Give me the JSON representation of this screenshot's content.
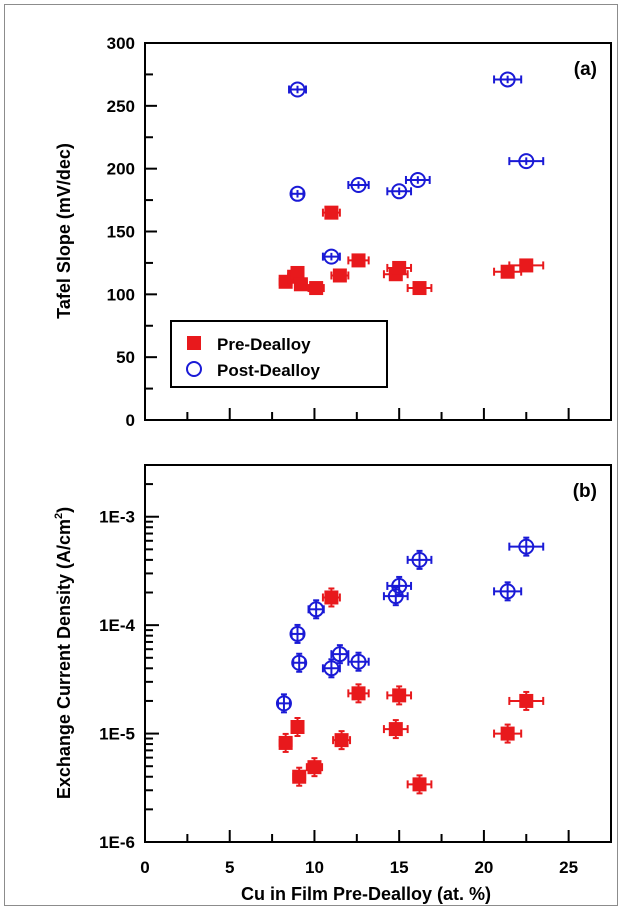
{
  "chart_data": [
    {
      "panel": "(a)",
      "type": "scatter",
      "ylabel": "Tafel Slope (mV/dec)",
      "xlabel": "",
      "xlim": [
        0,
        27.5
      ],
      "ylim": [
        0,
        300
      ],
      "yscale": "linear",
      "yticks": [
        0,
        50,
        100,
        150,
        200,
        250,
        300
      ],
      "xticks_minor": [
        2.5,
        5,
        7.5,
        10,
        12.5,
        15,
        17.5,
        20,
        22.5,
        25
      ],
      "legend": {
        "placement": "bottom-left",
        "entries": [
          "Pre-Dealloy",
          "Post-Dealloy"
        ]
      },
      "series": [
        {
          "name": "Pre-Dealloy",
          "marker": "filled-square",
          "color": "#e8191c",
          "points": [
            {
              "x": 8.3,
              "y": 110,
              "xerr": 0.35,
              "yerr": 3
            },
            {
              "x": 8.8,
              "y": 114,
              "xerr": 0.35,
              "yerr": 3
            },
            {
              "x": 9.0,
              "y": 117,
              "xerr": 0.35,
              "yerr": 3
            },
            {
              "x": 9.2,
              "y": 108,
              "xerr": 0.35,
              "yerr": 3
            },
            {
              "x": 10.1,
              "y": 105,
              "xerr": 0.45,
              "yerr": 3
            },
            {
              "x": 11.0,
              "y": 165,
              "xerr": 0.5,
              "yerr": 3
            },
            {
              "x": 11.5,
              "y": 115,
              "xerr": 0.5,
              "yerr": 3
            },
            {
              "x": 12.6,
              "y": 127,
              "xerr": 0.6,
              "yerr": 3
            },
            {
              "x": 14.8,
              "y": 116,
              "xerr": 0.7,
              "yerr": 4
            },
            {
              "x": 15.0,
              "y": 121,
              "xerr": 0.7,
              "yerr": 4
            },
            {
              "x": 16.2,
              "y": 105,
              "xerr": 0.7,
              "yerr": 3
            },
            {
              "x": 21.4,
              "y": 118,
              "xerr": 0.8,
              "yerr": 3
            },
            {
              "x": 22.5,
              "y": 123,
              "xerr": 1.0,
              "yerr": 3
            }
          ]
        },
        {
          "name": "Post-Dealloy",
          "marker": "open-circle",
          "color": "#1a1ad6",
          "points": [
            {
              "x": 9.0,
              "y": 263,
              "xerr": 0.5,
              "yerr": 3
            },
            {
              "x": 9.0,
              "y": 180,
              "xerr": 0.35,
              "yerr": 3
            },
            {
              "x": 11.0,
              "y": 130,
              "xerr": 0.5,
              "yerr": 3
            },
            {
              "x": 12.6,
              "y": 187,
              "xerr": 0.6,
              "yerr": 3
            },
            {
              "x": 15.0,
              "y": 182,
              "xerr": 0.7,
              "yerr": 3
            },
            {
              "x": 16.1,
              "y": 191,
              "xerr": 0.7,
              "yerr": 3
            },
            {
              "x": 21.4,
              "y": 271,
              "xerr": 0.8,
              "yerr": 3
            },
            {
              "x": 22.5,
              "y": 206,
              "xerr": 1.0,
              "yerr": 3
            }
          ]
        }
      ]
    },
    {
      "panel": "(b)",
      "type": "scatter",
      "ylabel": "Exchange Current Density (A/cm²)",
      "ylabel_main": "Exchange Current Density (A/cm",
      "ylabel_sup": "2",
      "ylabel_end": ")",
      "xlabel": "Cu in Film Pre-Dealloy (at. %)",
      "xlim": [
        0,
        27.5
      ],
      "ylim": [
        1e-06,
        0.003
      ],
      "yscale": "log",
      "yticks": [
        "1E-6",
        "1E-5",
        "1E-4",
        "1E-3"
      ],
      "xticks": [
        0,
        5,
        10,
        15,
        20,
        25
      ],
      "series": [
        {
          "name": "Pre-Dealloy",
          "marker": "filled-square",
          "color": "#e8191c",
          "points": [
            {
              "x": 8.3,
              "y": 8.2e-06,
              "xerr": 0.35
            },
            {
              "x": 9.0,
              "y": 1.15e-05,
              "xerr": 0.35
            },
            {
              "x": 9.1,
              "y": 4e-06,
              "xerr": 0.35
            },
            {
              "x": 10.0,
              "y": 4.9e-06,
              "xerr": 0.45
            },
            {
              "x": 11.0,
              "y": 0.00018,
              "xerr": 0.5
            },
            {
              "x": 11.6,
              "y": 8.7e-06,
              "xerr": 0.5
            },
            {
              "x": 12.6,
              "y": 2.35e-05,
              "xerr": 0.6
            },
            {
              "x": 14.8,
              "y": 1.1e-05,
              "xerr": 0.7
            },
            {
              "x": 15.0,
              "y": 2.25e-05,
              "xerr": 0.7
            },
            {
              "x": 16.2,
              "y": 3.4e-06,
              "xerr": 0.7
            },
            {
              "x": 21.4,
              "y": 1e-05,
              "xerr": 0.8
            },
            {
              "x": 22.5,
              "y": 2e-05,
              "xerr": 1.0
            }
          ]
        },
        {
          "name": "Post-Dealloy",
          "marker": "open-circle",
          "color": "#1a1ad6",
          "points": [
            {
              "x": 8.2,
              "y": 1.9e-05,
              "xerr": 0.35
            },
            {
              "x": 9.0,
              "y": 8.3e-05,
              "xerr": 0.35
            },
            {
              "x": 9.1,
              "y": 4.5e-05,
              "xerr": 0.35
            },
            {
              "x": 10.1,
              "y": 0.00014,
              "xerr": 0.45
            },
            {
              "x": 11.0,
              "y": 4e-05,
              "xerr": 0.5
            },
            {
              "x": 11.5,
              "y": 5.4e-05,
              "xerr": 0.5
            },
            {
              "x": 12.6,
              "y": 4.6e-05,
              "xerr": 0.6
            },
            {
              "x": 14.8,
              "y": 0.000185,
              "xerr": 0.7
            },
            {
              "x": 15.0,
              "y": 0.00023,
              "xerr": 0.7
            },
            {
              "x": 16.2,
              "y": 0.0004,
              "xerr": 0.7
            },
            {
              "x": 21.4,
              "y": 0.000205,
              "xerr": 0.8
            },
            {
              "x": 22.5,
              "y": 0.00053,
              "xerr": 1.0
            }
          ]
        }
      ]
    }
  ]
}
